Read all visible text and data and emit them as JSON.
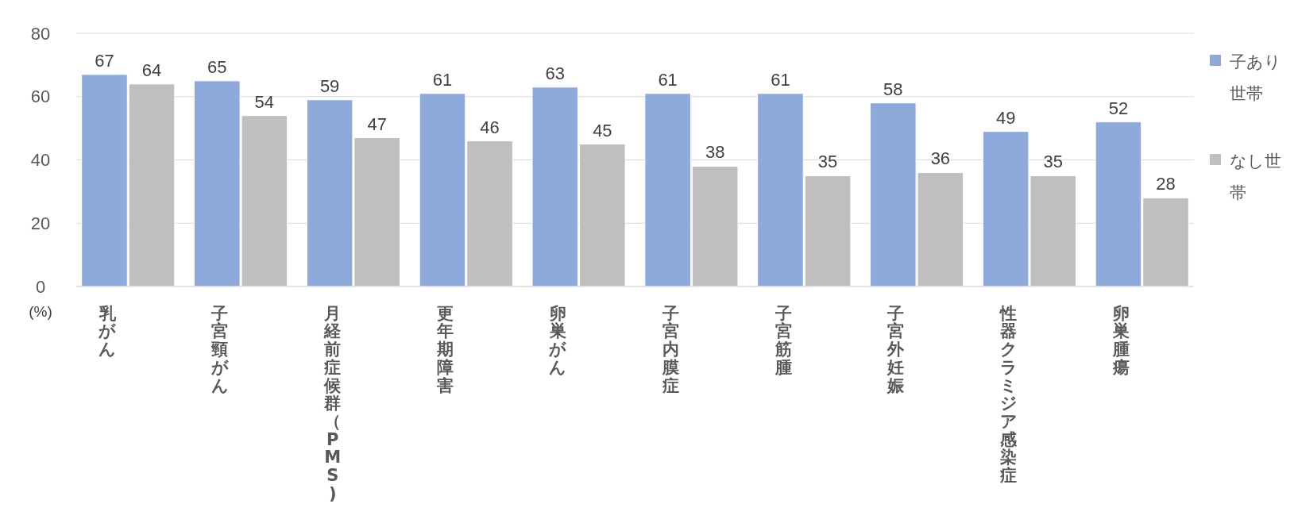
{
  "chart_data": {
    "type": "bar",
    "ylabel": "(%)",
    "categories": [
      "乳がん",
      "子宮頸がん",
      "月経前症候群（PMS)",
      "更年期障害",
      "卵巣がん",
      "子宮内膜症",
      "子宮筋腫",
      "子宮外妊娠",
      "性器クラミジア感染症",
      "卵巣腫瘍"
    ],
    "series": [
      {
        "name": "子あり世帯",
        "color": "#8eaadb",
        "values": [
          67,
          65,
          59,
          61,
          63,
          61,
          61,
          58,
          49,
          52
        ]
      },
      {
        "name": "なし世帯",
        "color": "#bfbfbf",
        "values": [
          64,
          54,
          47,
          46,
          45,
          38,
          35,
          36,
          35,
          28
        ]
      }
    ],
    "ylim": [
      0,
      80
    ],
    "yticks": [
      0,
      20,
      40,
      60,
      80
    ],
    "grid": "y",
    "legend": "right",
    "data_labels": true
  }
}
